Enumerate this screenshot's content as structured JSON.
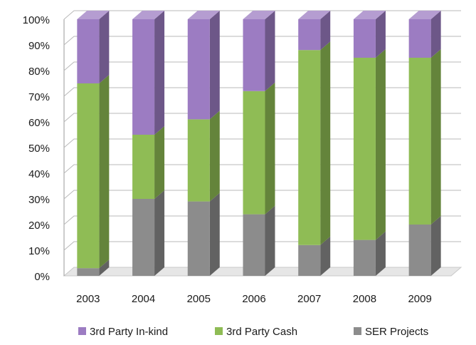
{
  "chart_data": {
    "type": "bar",
    "stacked": true,
    "percent_axis": true,
    "categories": [
      "2003",
      "2004",
      "2005",
      "2006",
      "2007",
      "2008",
      "2009"
    ],
    "y_ticks": [
      "0%",
      "10%",
      "20%",
      "30%",
      "40%",
      "50%",
      "60%",
      "70%",
      "80%",
      "90%",
      "100%"
    ],
    "ylim": [
      0,
      100
    ],
    "grid": true,
    "legend_position": "bottom",
    "series": [
      {
        "name": "SER Projects",
        "color": "#8c8c8c",
        "values": [
          3,
          30,
          29,
          24,
          12,
          14,
          20
        ]
      },
      {
        "name": "3rd Party Cash",
        "color": "#8fbc55",
        "values": [
          72,
          25,
          32,
          48,
          76,
          71,
          65
        ]
      },
      {
        "name": "3rd Party In-kind",
        "color": "#9c7cc2",
        "values": [
          25,
          45,
          39,
          28,
          12,
          15,
          15
        ]
      }
    ],
    "legend_order": [
      "3rd Party In-kind",
      "3rd Party Cash",
      "SER Projects"
    ]
  }
}
